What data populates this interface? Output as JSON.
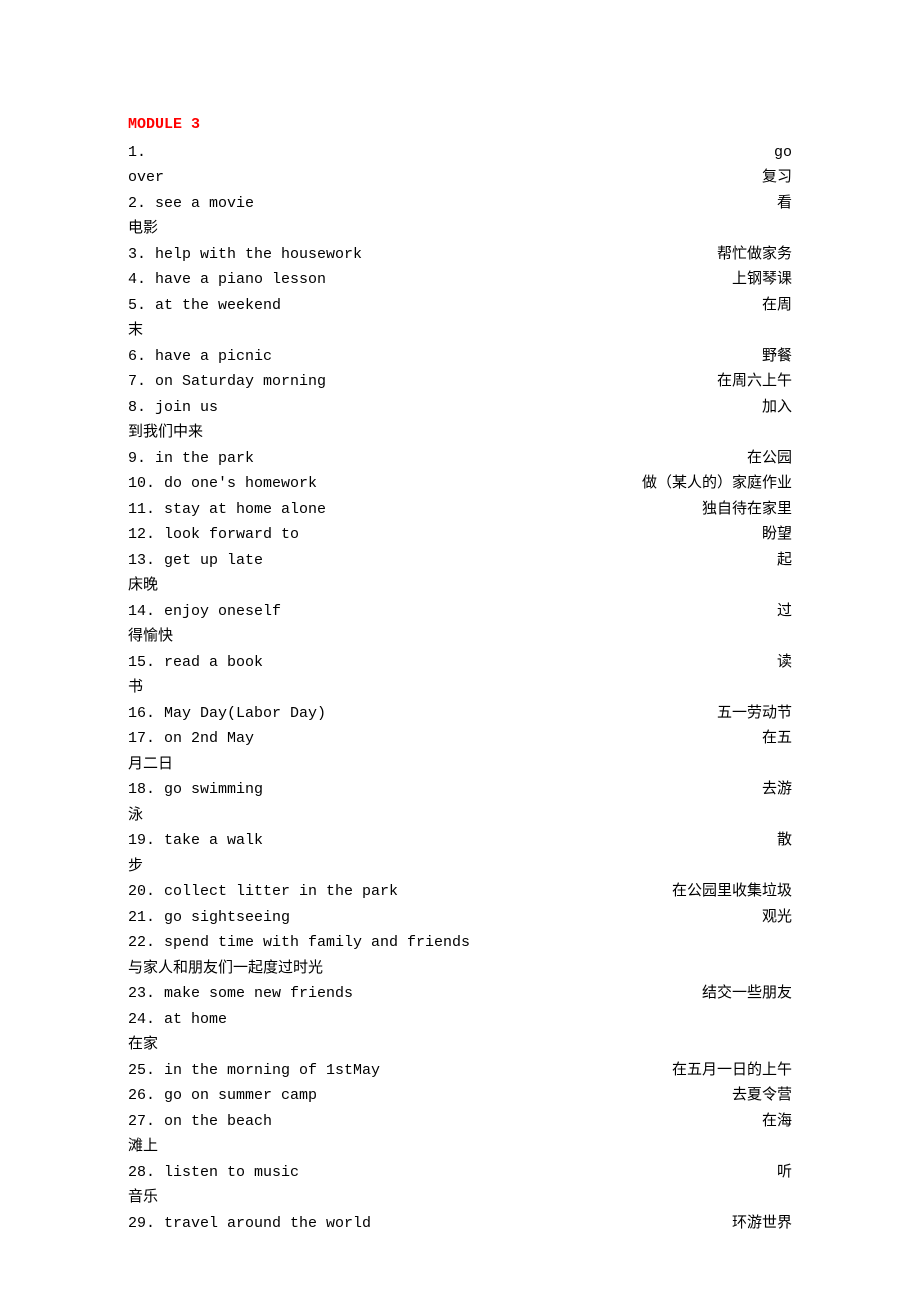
{
  "colors": {
    "title": "#ff0000",
    "text": "#000000",
    "background": "#ffffff"
  },
  "typography": {
    "mono_font": "Courier New",
    "cn_font": "SimSun",
    "fontsize": 15,
    "line_height": 1.7
  },
  "module_title": "MODULE 3",
  "lines": [
    {
      "left": "1.",
      "right": "go"
    },
    {
      "left": "over",
      "right": "复习"
    },
    {
      "left": "2. see a movie",
      "right": "看"
    },
    {
      "left": "电影",
      "right": ""
    },
    {
      "left": "3. help with the housework",
      "right": "帮忙做家务"
    },
    {
      "left": "4. have a piano lesson",
      "right": "上钢琴课"
    },
    {
      "left": "5. at the weekend",
      "right": "在周"
    },
    {
      "left": "末",
      "right": ""
    },
    {
      "left": "6. have a picnic",
      "right": "野餐"
    },
    {
      "left": "7. on Saturday morning",
      "right": "在周六上午"
    },
    {
      "left": "8. join us",
      "right": "加入"
    },
    {
      "left": "到我们中来",
      "right": ""
    },
    {
      "left": "9. in the park",
      "right": "在公园"
    },
    {
      "left": "10. do one's homework",
      "right": "做（某人的）家庭作业"
    },
    {
      "left": "11. stay at home alone",
      "right": "独自待在家里"
    },
    {
      "left": "12. look forward to",
      "right": "盼望"
    },
    {
      "left": "13. get up late",
      "right": "起"
    },
    {
      "left": "床晚",
      "right": ""
    },
    {
      "left": "14. enjoy oneself",
      "right": "过"
    },
    {
      "left": "得愉快",
      "right": ""
    },
    {
      "left": "15. read a book",
      "right": "读"
    },
    {
      "left": "书",
      "right": ""
    },
    {
      "left": "16. May Day(Labor Day)",
      "right": "五一劳动节"
    },
    {
      "left": "17. on 2nd May",
      "right": "在五"
    },
    {
      "left": "月二日",
      "right": ""
    },
    {
      "left": "18. go swimming",
      "right": "去游"
    },
    {
      "left": "泳",
      "right": ""
    },
    {
      "left": "19. take a walk",
      "right": "散"
    },
    {
      "left": "步",
      "right": ""
    },
    {
      "left": "20. collect litter in the park",
      "right": "在公园里收集垃圾"
    },
    {
      "left": "21. go sightseeing",
      "right": "观光"
    },
    {
      "left": "22. spend time with family and friends",
      "right": ""
    },
    {
      "left": "与家人和朋友们一起度过时光",
      "right": ""
    },
    {
      "left": "23. make some new friends",
      "right": "结交一些朋友"
    },
    {
      "left": "24. at home",
      "right": ""
    },
    {
      "left": "在家",
      "right": ""
    },
    {
      "left": "25. in the morning of 1stMay",
      "right": "在五月一日的上午"
    },
    {
      "left": "26. go on summer camp",
      "right": "去夏令营"
    },
    {
      "left": "27. on the beach",
      "right": "在海"
    },
    {
      "left": "滩上",
      "right": ""
    },
    {
      "left": "28. listen to music",
      "right": "听"
    },
    {
      "left": "音乐",
      "right": ""
    },
    {
      "left": "29. travel around the world",
      "right": "环游世界"
    }
  ]
}
